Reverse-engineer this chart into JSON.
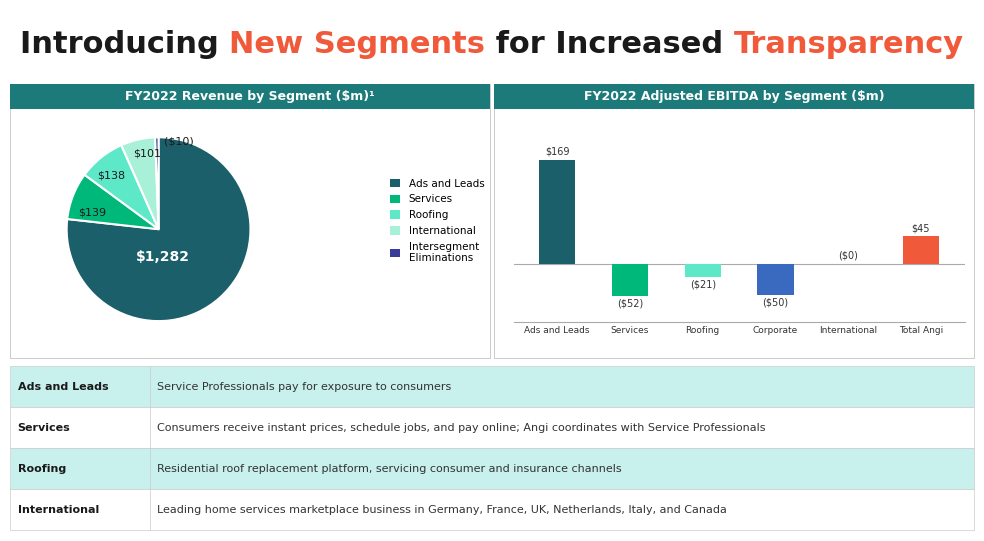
{
  "title_parts": [
    {
      "text": "Introducing ",
      "color": "#1a1a1a",
      "bold": true
    },
    {
      "text": "New Segments",
      "color": "#f05a3a",
      "bold": true
    },
    {
      "text": " for Increased ",
      "color": "#1a1a1a",
      "bold": true
    },
    {
      "text": "Transparency",
      "color": "#f05a3a",
      "bold": true
    }
  ],
  "pie_title": "FY2022 Revenue by Segment ($m)¹",
  "bar_title": "FY2022 Adjusted EBITDA by Segment ($m)",
  "header_color": "#1d7a7a",
  "header_text_color": "#ffffff",
  "pie_values": [
    1282,
    139,
    138,
    101,
    10
  ],
  "pie_labels": [
    "$1,282",
    "$139",
    "$138",
    "$101",
    "($10)"
  ],
  "pie_colors": [
    "#1a5f6a",
    "#00b87a",
    "#5de8c8",
    "#a8f0d8",
    "#3a3a9a"
  ],
  "pie_legend_labels": [
    "Ads and Leads",
    "Services",
    "Roofing",
    "International",
    "Intersegment\nEliminations"
  ],
  "bar_categories": [
    "Ads and Leads",
    "Services",
    "Roofing",
    "Corporate",
    "International",
    "Total Angi"
  ],
  "bar_values": [
    169,
    -52,
    -21,
    -50,
    0,
    45
  ],
  "bar_labels": [
    "$169",
    "($52)",
    "($21)",
    "($50)",
    "($0)",
    "$45"
  ],
  "bar_colors": [
    "#1a5f6a",
    "#00b87a",
    "#5de8c8",
    "#3a6abf",
    "#3a6abf",
    "#f05a3a"
  ],
  "table_rows": [
    {
      "label": "Ads and Leads",
      "desc": "Service Professionals pay for exposure to consumers",
      "color": "#c8f0ec"
    },
    {
      "label": "Services",
      "desc": "Consumers receive instant prices, schedule jobs, and pay online; Angi coordinates with Service Professionals",
      "color": "#ffffff"
    },
    {
      "label": "Roofing",
      "desc": "Residential roof replacement platform, servicing consumer and insurance channels",
      "color": "#c8f0ec"
    },
    {
      "label": "International",
      "desc": "Leading home services marketplace business in Germany, France, UK, Netherlands, Italy, and Canada",
      "color": "#ffffff"
    }
  ],
  "bg_color": "#ffffff",
  "panel_bg": "#ffffff",
  "border_color": "#cccccc",
  "title_fontsize": 22,
  "header_fontsize": 9,
  "label_fontsize": 8,
  "table_fontsize": 8
}
